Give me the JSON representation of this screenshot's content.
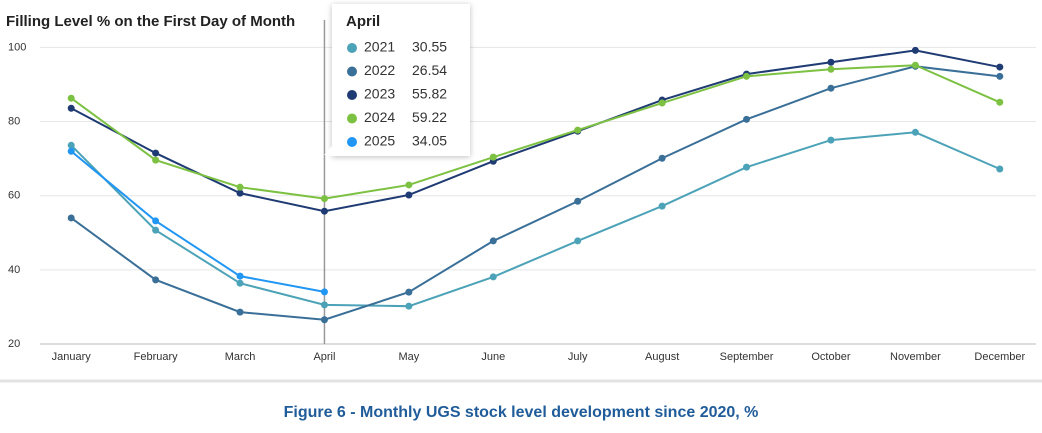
{
  "chart_data": {
    "type": "line",
    "title": "Filling Level % on the First Day of Month",
    "caption": "Figure 6 - Monthly UGS stock level development since 2020, %",
    "categories": [
      "January",
      "February",
      "March",
      "April",
      "May",
      "June",
      "July",
      "August",
      "September",
      "October",
      "November",
      "December"
    ],
    "series": [
      {
        "name": "2021",
        "color": "#4ca3b8",
        "values": [
          73.6,
          50.7,
          36.4,
          30.55,
          30.2,
          38.1,
          47.8,
          57.2,
          67.7,
          75.0,
          77.1,
          67.2
        ]
      },
      {
        "name": "2022",
        "color": "#3a6f98",
        "values": [
          54.0,
          37.3,
          28.6,
          26.54,
          34.0,
          47.8,
          58.5,
          70.1,
          80.6,
          89.0,
          94.9,
          92.2
        ]
      },
      {
        "name": "2023",
        "color": "#1f3b73",
        "values": [
          83.6,
          71.5,
          60.7,
          55.82,
          60.2,
          69.3,
          77.4,
          85.8,
          92.8,
          96.0,
          99.2,
          94.7
        ]
      },
      {
        "name": "2024",
        "color": "#7dc142",
        "values": [
          86.3,
          69.6,
          62.3,
          59.22,
          62.9,
          70.4,
          77.7,
          85.0,
          92.2,
          94.1,
          95.2,
          85.2
        ]
      },
      {
        "name": "2025",
        "color": "#2196f3",
        "values": [
          72.0,
          53.2,
          38.3,
          34.05,
          null,
          null,
          null,
          null,
          null,
          null,
          null,
          null
        ]
      }
    ],
    "ylim": [
      20,
      102
    ],
    "yticks": [
      20,
      40,
      60,
      80,
      100
    ],
    "grid": true,
    "tooltip_index": 3
  }
}
